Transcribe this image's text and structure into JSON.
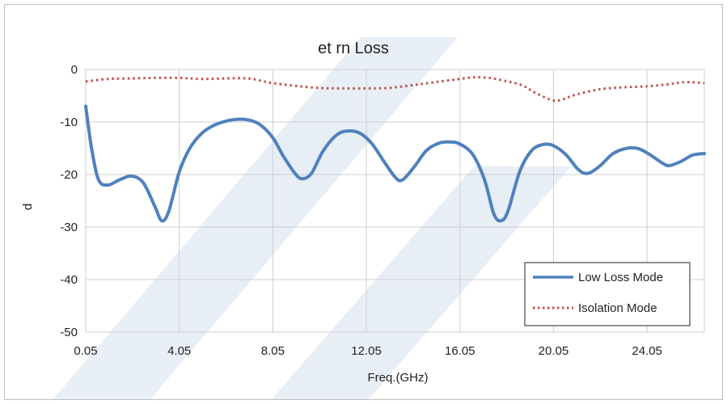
{
  "chart_data": {
    "type": "line",
    "title": "et    rn Loss",
    "xlabel": "Freq.(GHz)",
    "ylabel": "d",
    "xlim": [
      0.05,
      26.5
    ],
    "ylim": [
      -50,
      0
    ],
    "x_ticks": [
      "0.05",
      "4.05",
      "8.05",
      "12.05",
      "16.05",
      "20.05",
      "24.05"
    ],
    "y_ticks": [
      "0",
      "-10",
      "-20",
      "-30",
      "-40",
      "-50"
    ],
    "grid": true,
    "legend_position": "bottom-right",
    "series": [
      {
        "name": "Low Loss Mode",
        "color": "#4f81bd",
        "style": "solid",
        "points": [
          [
            0.05,
            -7
          ],
          [
            0.3,
            -15
          ],
          [
            0.6,
            -21
          ],
          [
            1.0,
            -22
          ],
          [
            1.5,
            -21
          ],
          [
            2.0,
            -20.3
          ],
          [
            2.5,
            -21.5
          ],
          [
            3.0,
            -26
          ],
          [
            3.3,
            -28.8
          ],
          [
            3.6,
            -27
          ],
          [
            4.05,
            -19.5
          ],
          [
            4.5,
            -15
          ],
          [
            5.0,
            -12.2
          ],
          [
            5.5,
            -10.7
          ],
          [
            6.0,
            -9.9
          ],
          [
            6.5,
            -9.5
          ],
          [
            7.0,
            -9.6
          ],
          [
            7.5,
            -10.5
          ],
          [
            8.05,
            -13
          ],
          [
            8.5,
            -16.5
          ],
          [
            9.0,
            -19.8
          ],
          [
            9.3,
            -20.8
          ],
          [
            9.7,
            -19.8
          ],
          [
            10.2,
            -15.5
          ],
          [
            10.8,
            -12.4
          ],
          [
            11.3,
            -11.7
          ],
          [
            11.8,
            -12.2
          ],
          [
            12.3,
            -14.2
          ],
          [
            12.8,
            -17.5
          ],
          [
            13.3,
            -20.6
          ],
          [
            13.6,
            -21
          ],
          [
            14.1,
            -18.5
          ],
          [
            14.6,
            -15.5
          ],
          [
            15.1,
            -14.1
          ],
          [
            15.6,
            -13.8
          ],
          [
            16.05,
            -14.2
          ],
          [
            16.6,
            -16.2
          ],
          [
            17.1,
            -21
          ],
          [
            17.5,
            -27.5
          ],
          [
            17.8,
            -28.8
          ],
          [
            18.1,
            -27
          ],
          [
            18.6,
            -19.5
          ],
          [
            19.1,
            -15.5
          ],
          [
            19.6,
            -14.3
          ],
          [
            20.05,
            -14.5
          ],
          [
            20.6,
            -16.3
          ],
          [
            21.1,
            -19
          ],
          [
            21.5,
            -19.8
          ],
          [
            22.0,
            -18.5
          ],
          [
            22.6,
            -16
          ],
          [
            23.2,
            -15
          ],
          [
            23.7,
            -15.1
          ],
          [
            24.2,
            -16.3
          ],
          [
            24.7,
            -17.8
          ],
          [
            25.0,
            -18.3
          ],
          [
            25.5,
            -17.5
          ],
          [
            26.0,
            -16.3
          ],
          [
            26.5,
            -16
          ]
        ]
      },
      {
        "name": "Isolation Mode",
        "color": "#c0504d",
        "style": "dotted",
        "points": [
          [
            0.05,
            -2.3
          ],
          [
            1.0,
            -1.8
          ],
          [
            2.0,
            -1.7
          ],
          [
            3.0,
            -1.6
          ],
          [
            4.05,
            -1.6
          ],
          [
            5.0,
            -1.8
          ],
          [
            6.0,
            -1.7
          ],
          [
            7.0,
            -1.7
          ],
          [
            7.6,
            -2.2
          ],
          [
            8.05,
            -2.6
          ],
          [
            9.0,
            -3.1
          ],
          [
            10.0,
            -3.5
          ],
          [
            11.0,
            -3.6
          ],
          [
            12.05,
            -3.6
          ],
          [
            13.0,
            -3.5
          ],
          [
            14.0,
            -3.0
          ],
          [
            15.0,
            -2.4
          ],
          [
            16.05,
            -1.8
          ],
          [
            16.6,
            -1.5
          ],
          [
            17.3,
            -1.6
          ],
          [
            18.0,
            -2.2
          ],
          [
            18.7,
            -3.0
          ],
          [
            19.3,
            -4.5
          ],
          [
            20.05,
            -5.9
          ],
          [
            20.5,
            -5.6
          ],
          [
            21.0,
            -4.8
          ],
          [
            22.0,
            -3.8
          ],
          [
            23.0,
            -3.4
          ],
          [
            24.05,
            -3.2
          ],
          [
            25.0,
            -2.8
          ],
          [
            25.7,
            -2.4
          ],
          [
            26.5,
            -2.6
          ]
        ]
      }
    ]
  }
}
